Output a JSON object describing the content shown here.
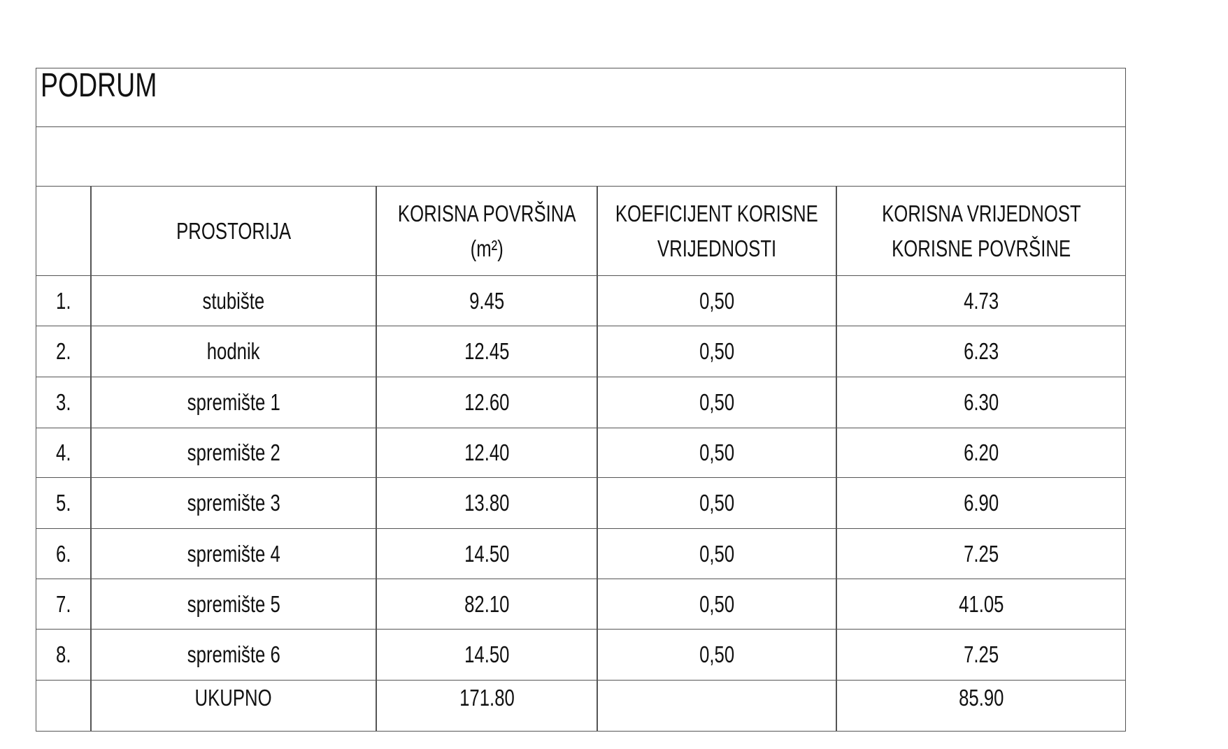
{
  "title": "PODRUM",
  "table": {
    "header": [
      [
        "PROSTORIJA"
      ],
      [
        "KORISNA POVRŠINA",
        "(m²)"
      ],
      [
        "KOEFICIJENT KORISNE",
        "VRIJEDNOSTI"
      ],
      [
        "KORISNA VRIJEDNOST",
        "KORISNE POVRŠINE"
      ]
    ],
    "rows": [
      [
        "1.",
        "stubište",
        "9.45",
        "0,50",
        "4.73"
      ],
      [
        "2.",
        "hodnik",
        "12.45",
        "0,50",
        "6.23"
      ],
      [
        "3.",
        "spremište 1",
        "12.60",
        "0,50",
        "6.30"
      ],
      [
        "4.",
        "spremište 2",
        "12.40",
        "0,50",
        "6.20"
      ],
      [
        "5.",
        "spremište 3",
        "13.80",
        "0,50",
        "6.90"
      ],
      [
        "6.",
        "spremište 4",
        "14.50",
        "0,50",
        "7.25"
      ],
      [
        "7.",
        "spremište 5",
        "82.10",
        "0,50",
        "41.05"
      ],
      [
        "8.",
        "spremište 6",
        "14.50",
        "0,50",
        "7.25"
      ]
    ],
    "total": {
      "label": "UKUPNO",
      "area": "171.80",
      "value": "85.90"
    }
  }
}
